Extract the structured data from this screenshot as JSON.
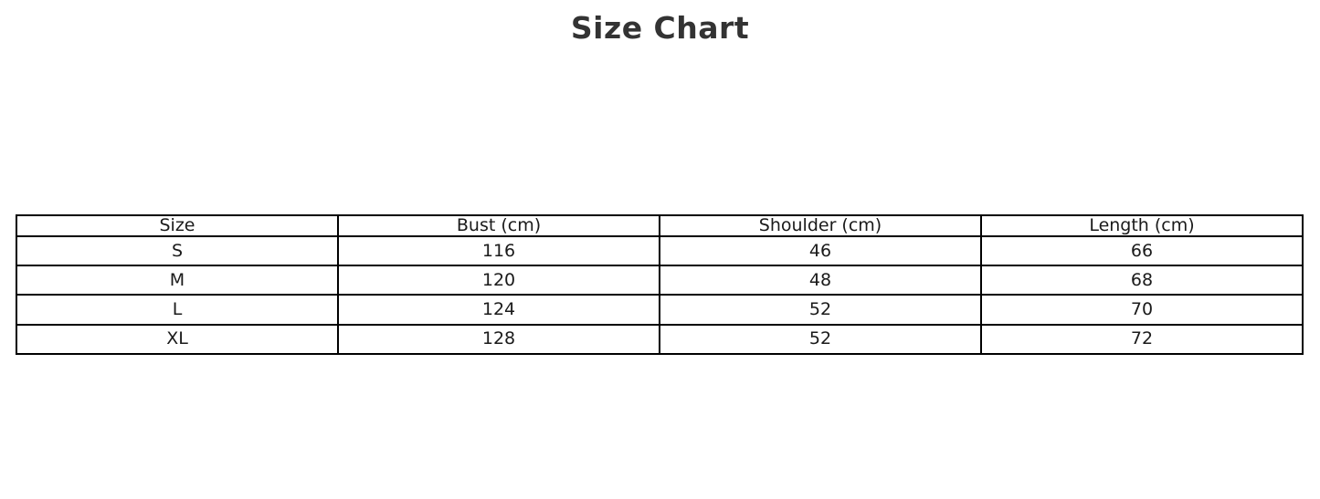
{
  "title": "Size Chart",
  "chart_data": {
    "type": "table",
    "title": "Size Chart",
    "columns": [
      "Size",
      "Bust (cm)",
      "Shoulder (cm)",
      "Length (cm)"
    ],
    "rows": [
      [
        "S",
        "116",
        "46",
        "66"
      ],
      [
        "M",
        "120",
        "48",
        "68"
      ],
      [
        "L",
        "124",
        "52",
        "70"
      ],
      [
        "XL",
        "128",
        "52",
        "72"
      ]
    ],
    "layout": {
      "grid": "on",
      "columns_equal_width": true,
      "cell_text_align": "center"
    }
  },
  "colors": {
    "background": "#ffffff",
    "title_text": "#333333",
    "cell_text": "#1a1a1a",
    "table_border": "#000000",
    "cell_background": "#ffffff"
  }
}
